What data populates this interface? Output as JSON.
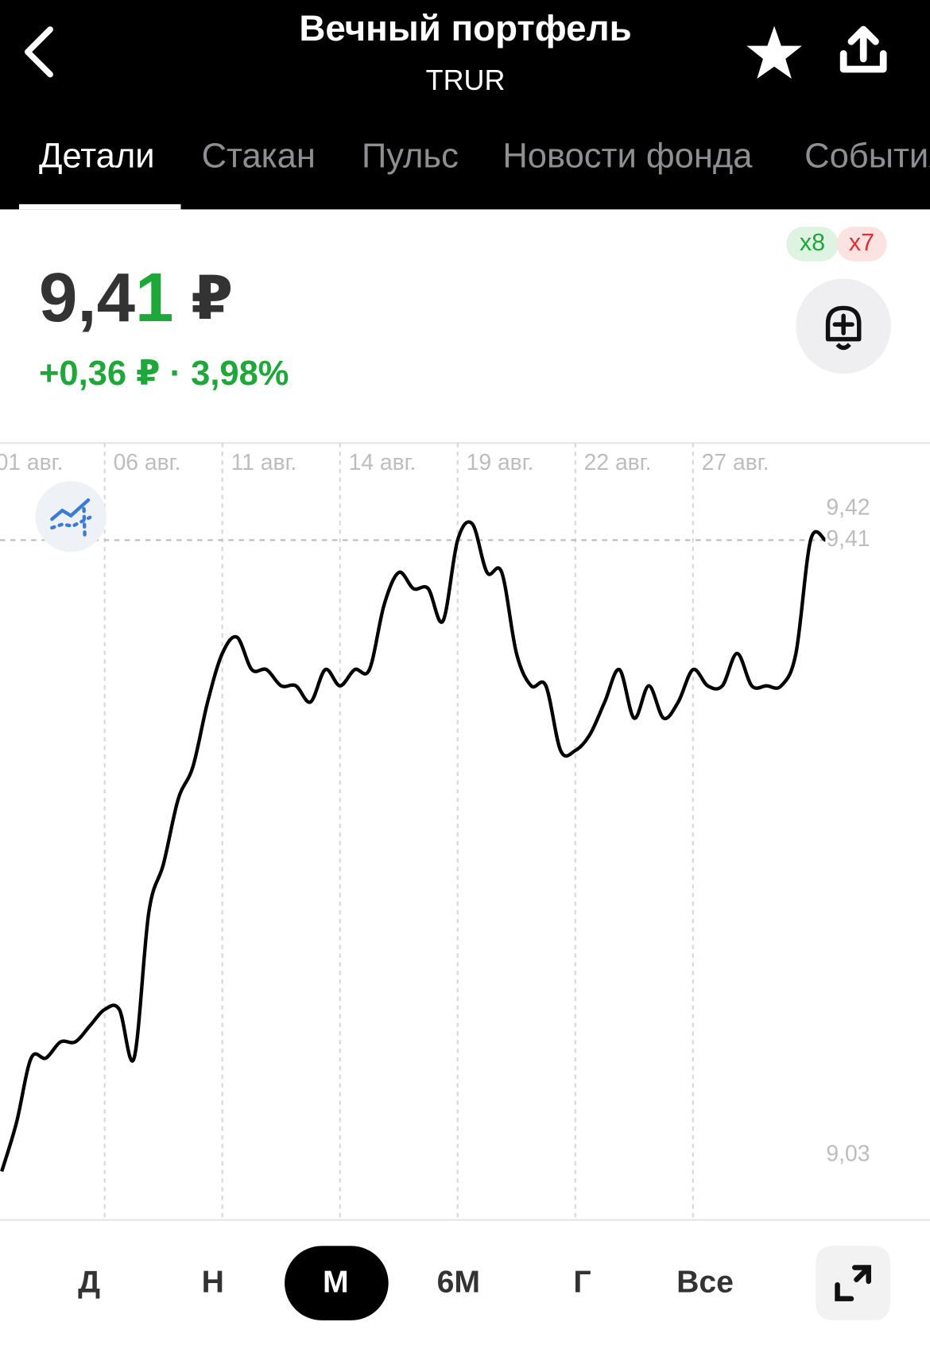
{
  "header": {
    "title": "Вечный портфель",
    "ticker": "TRUR"
  },
  "tabs": [
    "Детали",
    "Стакан",
    "Пульс",
    "Новости фонда",
    "События"
  ],
  "badges": [
    "x8",
    "x7"
  ],
  "price": {
    "main": "9,4",
    "changed_digit": "1",
    "currency": "₽",
    "change": "+0,36 ₽ · 3,98%"
  },
  "chart_data": {
    "type": "line",
    "categories": [
      "01 авг.",
      null,
      null,
      null,
      null,
      null,
      null,
      null,
      "06 авг.",
      null,
      null,
      null,
      null,
      null,
      null,
      null,
      "11 авг.",
      null,
      null,
      null,
      null,
      null,
      null,
      null,
      "14 авг.",
      null,
      null,
      null,
      null,
      null,
      null,
      null,
      "19 авг.",
      null,
      null,
      null,
      null,
      null,
      null,
      null,
      "22 авг.",
      null,
      null,
      null,
      null,
      null,
      null,
      null,
      "27 авг.",
      null,
      null,
      null,
      null,
      null,
      null,
      null,
      null,
      null
    ],
    "series": [
      {
        "name": "TRUR",
        "color": "#000000",
        "values": [
          null,
          9.02,
          9.05,
          9.09,
          9.09,
          9.1,
          9.1,
          9.11,
          9.12,
          9.12,
          9.09,
          9.18,
          9.21,
          9.25,
          9.27,
          9.31,
          9.34,
          9.35,
          9.33,
          9.33,
          9.32,
          9.32,
          9.31,
          9.33,
          9.32,
          9.33,
          9.33,
          9.37,
          9.39,
          9.38,
          9.38,
          9.36,
          9.41,
          9.42,
          9.39,
          9.39,
          9.34,
          9.32,
          9.32,
          9.28,
          9.28,
          9.29,
          9.31,
          9.33,
          9.3,
          9.32,
          9.3,
          9.31,
          9.33,
          9.32,
          9.32,
          9.34,
          9.32,
          9.32,
          9.32,
          9.34,
          9.41,
          9.41
        ]
      }
    ],
    "ylim": [
      8.99,
      9.47
    ],
    "yticks": [
      {
        "value": 9.42,
        "label": "9,42"
      },
      {
        "value": 9.41,
        "label": "9,41"
      },
      {
        "value": 9.03,
        "label": "9,03"
      }
    ],
    "current_value": 9.41,
    "grid": true
  },
  "periods": [
    "Д",
    "Н",
    "М",
    "6М",
    "Г",
    "Все"
  ]
}
